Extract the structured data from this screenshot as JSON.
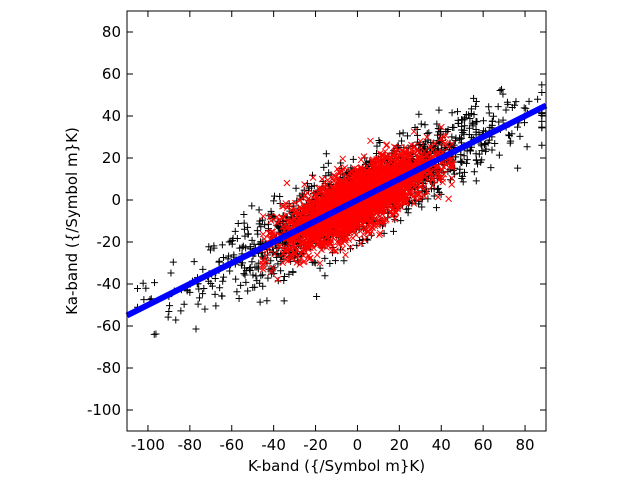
{
  "chart_data": {
    "type": "scatter",
    "title": "",
    "xlabel": "K-band ({/Symbol m}K)",
    "ylabel": "Ka-band ({/Symbol m}K)",
    "xlim": [
      -110,
      90
    ],
    "ylim": [
      -110,
      90
    ],
    "xticks": [
      -100,
      -80,
      -60,
      -40,
      -20,
      0,
      20,
      40,
      60,
      80
    ],
    "yticks": [
      -100,
      -80,
      -60,
      -40,
      -20,
      0,
      20,
      40,
      60,
      80
    ],
    "grid": false,
    "legend": "none",
    "series": [
      {
        "marker": "plus",
        "color": "#000000",
        "count": 1600,
        "spread_x": 34,
        "slope": 0.5,
        "intercept": 0,
        "scatter_sd": 9,
        "x_range": [
          -105,
          88
        ],
        "values_sample": [
          [
            -101,
            -42
          ],
          [
            -97,
            -64
          ],
          [
            -90,
            -46
          ],
          [
            -80,
            -44
          ],
          [
            -60,
            -30
          ],
          [
            -40,
            -20
          ],
          [
            40,
            20
          ],
          [
            60,
            30
          ],
          [
            80,
            40
          ],
          [
            86,
            48
          ]
        ]
      },
      {
        "marker": "cross",
        "color": "#ff0000",
        "count": 2800,
        "spread_x": 17,
        "slope": 0.5,
        "intercept": 0,
        "scatter_sd": 7,
        "x_range": [
          -45,
          45
        ],
        "values_sample": [
          [
            -40,
            -20
          ],
          [
            -20,
            -10
          ],
          [
            0,
            0
          ],
          [
            20,
            10
          ],
          [
            40,
            18
          ]
        ]
      },
      {
        "type": "line",
        "color": "#0000ff",
        "slope": 0.5,
        "intercept": 0,
        "x": [
          -110,
          90
        ],
        "y": [
          -55,
          45
        ]
      }
    ]
  }
}
